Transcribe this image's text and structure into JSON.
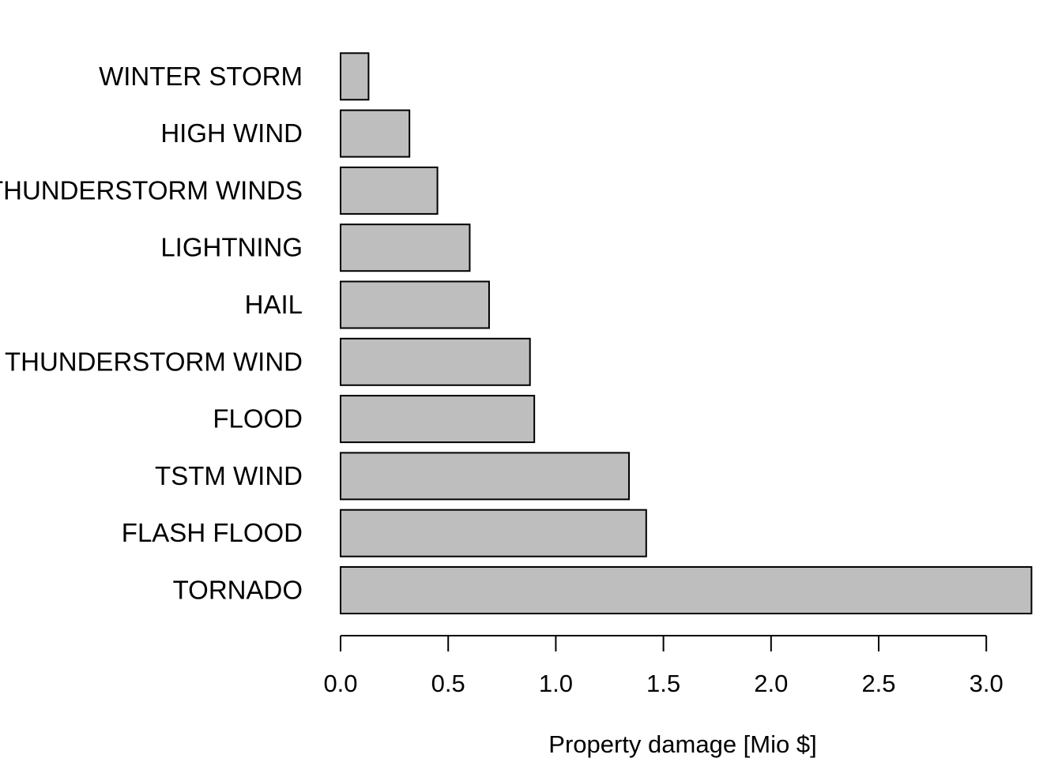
{
  "chart_data": {
    "type": "bar",
    "orientation": "horizontal",
    "title": "",
    "xlabel": "Property damage [Mio $]",
    "ylabel": "",
    "categories": [
      "TORNADO",
      "FLASH FLOOD",
      "TSTM WIND",
      "FLOOD",
      "THUNDERSTORM WIND",
      "HAIL",
      "LIGHTNING",
      "THUNDERSTORM WINDS",
      "HIGH WIND",
      "WINTER STORM"
    ],
    "values": [
      3.21,
      1.42,
      1.34,
      0.9,
      0.88,
      0.69,
      0.6,
      0.45,
      0.32,
      0.13
    ],
    "xlim": [
      0,
      3.21
    ],
    "xticks": [
      0.0,
      0.5,
      1.0,
      1.5,
      2.0,
      2.5,
      3.0
    ],
    "xtick_labels": [
      "0.0",
      "0.5",
      "1.0",
      "1.5",
      "2.0",
      "2.5",
      "3.0"
    ],
    "grid": false,
    "legend": "none",
    "bar_color": "#bebebe",
    "edge_color": "#000000"
  }
}
